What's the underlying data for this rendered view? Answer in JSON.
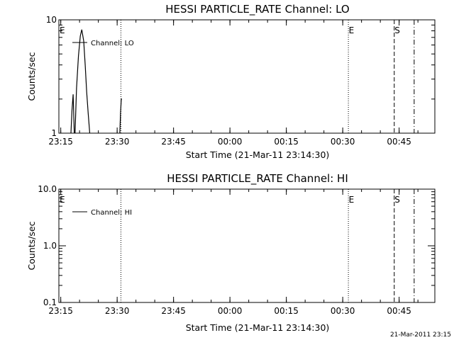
{
  "footer_timestamp": "21-Mar-2011 23:15",
  "chart_data": [
    {
      "type": "line",
      "title": "HESSI PARTICLE_RATE Channel: LO",
      "xlabel": "Start Time (21-Mar-11 23:14:30)",
      "ylabel": "Counts/sec",
      "x_ticks": [
        "23:15",
        "23:30",
        "23:45",
        "00:00",
        "00:15",
        "00:30",
        "00:45"
      ],
      "x_tick_minutes": [
        0.5,
        15.5,
        30.5,
        45.5,
        60.5,
        75.5,
        90.5
      ],
      "xlim_minutes": [
        0,
        100
      ],
      "y_scale": "log",
      "ylim": [
        1,
        10
      ],
      "y_ticks": [
        "1",
        "10"
      ],
      "y_tick_values": [
        1,
        10
      ],
      "legend": {
        "label": "Channel: LO",
        "position": "top-left"
      },
      "series": [
        {
          "name": "Channel: LO",
          "segments": [
            [
              [
                3.2,
                1
              ],
              [
                3.5,
                1.6
              ],
              [
                3.8,
                2.2
              ],
              [
                4.1,
                1
              ]
            ],
            [
              [
                4.3,
                1
              ],
              [
                4.7,
                2.5
              ],
              [
                5.2,
                4.8
              ],
              [
                5.7,
                7.2
              ],
              [
                6.1,
                8.2
              ],
              [
                6.6,
                6.5
              ],
              [
                7.0,
                4.0
              ],
              [
                7.4,
                2.3
              ],
              [
                7.8,
                1.5
              ],
              [
                8.2,
                1
              ]
            ],
            [
              [
                16.2,
                1
              ],
              [
                16.4,
                1.5
              ],
              [
                16.6,
                2.0
              ],
              [
                16.8,
                2.0
              ]
            ]
          ]
        }
      ],
      "vlines": [
        {
          "minute": 0.1,
          "label": "E",
          "style": "solid"
        },
        {
          "minute": 16.5,
          "label": "",
          "style": "dotted"
        },
        {
          "minute": 77.0,
          "label": "E",
          "style": "dotted"
        },
        {
          "minute": 89.2,
          "label": "S",
          "style": "dashed"
        },
        {
          "minute": 94.5,
          "label": "",
          "style": "dashdot"
        }
      ]
    },
    {
      "type": "line",
      "title": "HESSI PARTICLE_RATE Channel: HI",
      "xlabel": "Start Time (21-Mar-11 23:14:30)",
      "ylabel": "Counts/sec",
      "x_ticks": [
        "23:15",
        "23:30",
        "23:45",
        "00:00",
        "00:15",
        "00:30",
        "00:45"
      ],
      "x_tick_minutes": [
        0.5,
        15.5,
        30.5,
        45.5,
        60.5,
        75.5,
        90.5
      ],
      "xlim_minutes": [
        0,
        100
      ],
      "y_scale": "log",
      "ylim": [
        0.1,
        10
      ],
      "y_ticks": [
        "0.1",
        "1.0",
        "10.0"
      ],
      "y_tick_values": [
        0.1,
        1,
        10
      ],
      "legend": {
        "label": "Channel: HI",
        "position": "top-left"
      },
      "series": [
        {
          "name": "Channel: HI",
          "segments": []
        }
      ],
      "vlines": [
        {
          "minute": 0.1,
          "label": "E",
          "style": "solid"
        },
        {
          "minute": 16.5,
          "label": "",
          "style": "dotted"
        },
        {
          "minute": 77.0,
          "label": "E",
          "style": "dotted"
        },
        {
          "minute": 89.2,
          "label": "S",
          "style": "dashed"
        },
        {
          "minute": 94.5,
          "label": "",
          "style": "dashdot"
        }
      ]
    }
  ]
}
